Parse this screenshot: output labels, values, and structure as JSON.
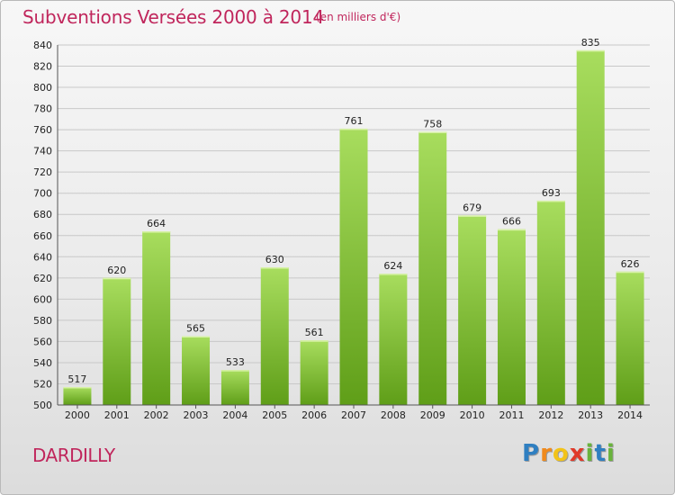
{
  "header": {
    "title": "Subventions Versées 2000 à 2014",
    "subtitle": "(en milliers d'€)"
  },
  "footer": {
    "place": "DARDILLY",
    "logo_letters": [
      "P",
      "r",
      "o",
      "x",
      "i",
      "t",
      "i"
    ],
    "logo_colors": [
      "#2f7fc1",
      "#f08a1c",
      "#f2c318",
      "#e03a2a",
      "#69b33c",
      "#2f7fc1",
      "#69b33c"
    ]
  },
  "colors": {
    "bar_light": "#a8dd5e",
    "bar_dark": "#5f9e18",
    "grid": "#c8c8c8",
    "title": "#c0265c"
  },
  "chart_data": {
    "type": "bar",
    "categories": [
      "2000",
      "2001",
      "2002",
      "2003",
      "2004",
      "2005",
      "2006",
      "2007",
      "2008",
      "2009",
      "2010",
      "2011",
      "2012",
      "2013",
      "2014"
    ],
    "values": [
      517,
      620,
      664,
      565,
      533,
      630,
      561,
      761,
      624,
      758,
      679,
      666,
      693,
      835,
      626
    ],
    "ylim": [
      500,
      840
    ],
    "yticks": [
      500,
      520,
      540,
      560,
      580,
      600,
      620,
      640,
      660,
      680,
      700,
      720,
      740,
      760,
      780,
      800,
      820,
      840
    ],
    "grid": true,
    "xlabel": "",
    "ylabel": ""
  }
}
